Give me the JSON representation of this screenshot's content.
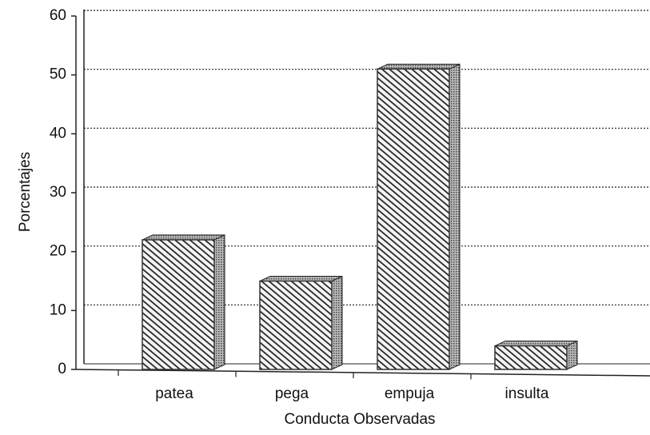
{
  "chart_data": {
    "type": "bar",
    "categories": [
      "patea",
      "pega",
      "empuja",
      "insulta"
    ],
    "values": [
      22,
      15,
      51,
      4
    ],
    "color": "#333333",
    "x_label": "Conducta Observadas",
    "y_label": "Porcentajes",
    "ylim": [
      0,
      60
    ],
    "yticks": [
      0,
      10,
      20,
      30,
      40,
      50,
      60
    ],
    "grid": true
  }
}
